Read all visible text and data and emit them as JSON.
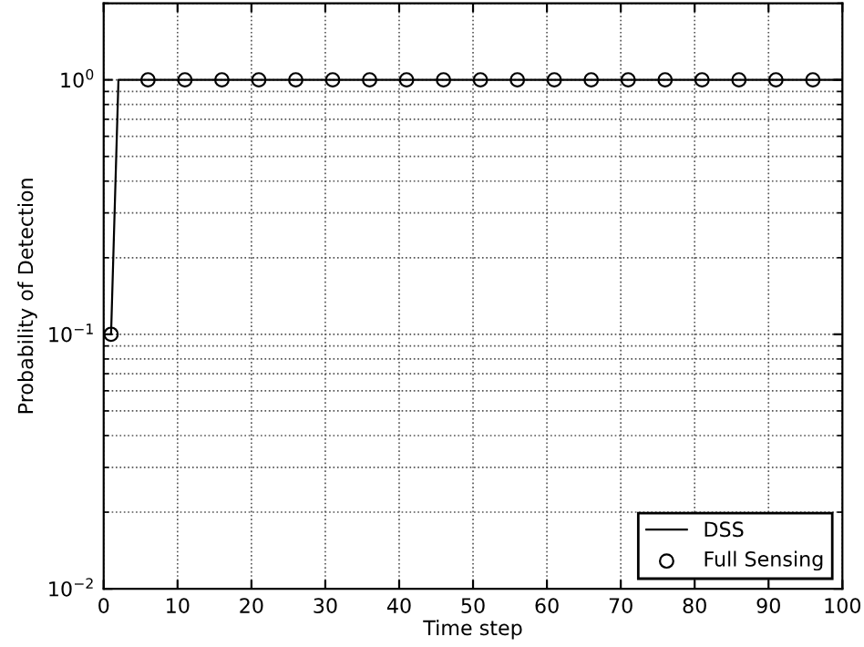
{
  "chart_data": {
    "type": "line",
    "xlabel": "Time step",
    "ylabel": "Probability of Detection",
    "series": [
      {
        "name": "DSS",
        "color": "#000000",
        "marker": "none",
        "x": [
          1,
          2,
          100
        ],
        "values": [
          0.1,
          1,
          1
        ]
      },
      {
        "name": "Full Sensing",
        "color": "#000000",
        "type": "scatter",
        "marker": "circle",
        "x": [
          1,
          6,
          11,
          16,
          21,
          26,
          31,
          36,
          41,
          46,
          51,
          56,
          61,
          66,
          71,
          76,
          81,
          86,
          91,
          96
        ],
        "values": [
          0.1,
          1,
          1,
          1,
          1,
          1,
          1,
          1,
          1,
          1,
          1,
          1,
          1,
          1,
          1,
          1,
          1,
          1,
          1,
          1
        ]
      }
    ],
    "log": "y",
    "xlim": [
      0,
      100
    ],
    "ylim": [
      0.01,
      2
    ],
    "xticks": [
      0,
      10,
      20,
      30,
      40,
      50,
      60,
      70,
      80,
      90,
      100
    ],
    "yticks": [
      {
        "value": 0.01,
        "label": "10$^{−2}$"
      },
      {
        "value": 0.1,
        "label": "10$^{−1}$"
      },
      {
        "value": 1,
        "label": "10$^{0}$"
      }
    ],
    "grid": true,
    "legend": "bottom right"
  }
}
